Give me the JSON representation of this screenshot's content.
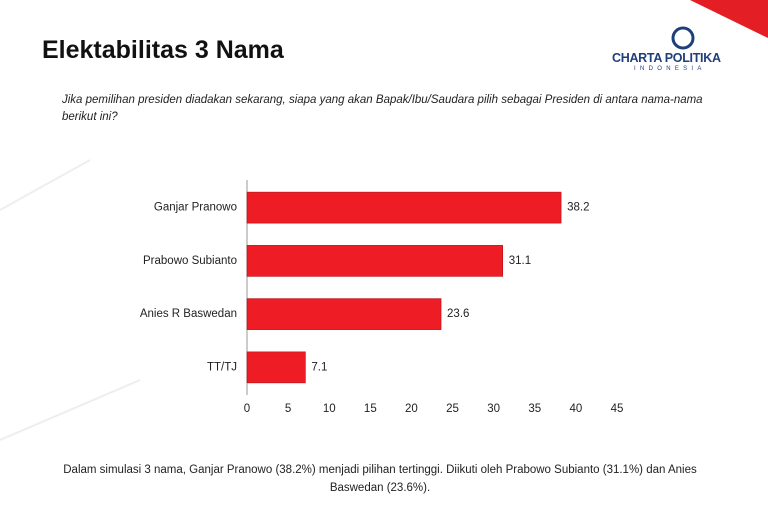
{
  "logo": {
    "name": "CHARTA POLITIKA",
    "country": "INDONESIA"
  },
  "chart_data": {
    "type": "hbar",
    "title": "Elektabilitas 3 Nama",
    "subtitle": "Jika pemilihan presiden diadakan sekarang, siapa yang akan Bapak/Ibu/Saudara pilih sebagai Presiden di antara nama-nama berikut ini?",
    "note": "Dalam simulasi 3 nama, Ganjar Pranowo (38.2%) menjadi pilihan tertinggi. Diikuti oleh Prabowo Subianto (31.1%) dan Anies Baswedan (23.6%).",
    "categories": [
      "Ganjar Pranowo",
      "Prabowo Subianto",
      "Anies R Baswedan",
      "TT/TJ"
    ],
    "values": [
      38.2,
      31.1,
      23.6,
      7.1
    ],
    "color": "#ee1c25",
    "xlim": [
      0,
      45
    ],
    "xticks": [
      0,
      5,
      10,
      15,
      20,
      25,
      30,
      35,
      40,
      45
    ],
    "grid": false
  }
}
